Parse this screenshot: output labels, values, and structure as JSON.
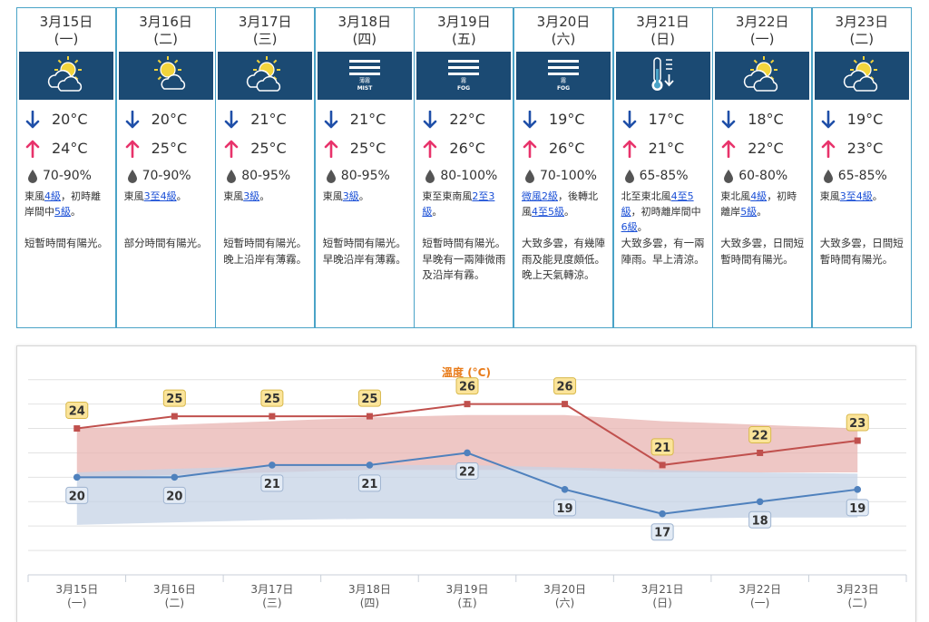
{
  "forecast": [
    {
      "date": "3月15日",
      "dow": "(一)",
      "icon": "sunny-periods-cloud-icon",
      "icon_label": "",
      "low": "20°C",
      "high": "24°C",
      "humidity": "70-90%",
      "wind": [
        {
          "t": "東風"
        },
        {
          "t": "4級",
          "link": true
        },
        {
          "t": "，初時離岸間中"
        },
        {
          "t": "5級",
          "link": true
        },
        {
          "t": "。"
        }
      ],
      "desc": "短暫時間有陽光。"
    },
    {
      "date": "3月16日",
      "dow": "(二)",
      "icon": "sun-cloud-icon",
      "icon_label": "",
      "low": "20°C",
      "high": "25°C",
      "humidity": "70-90%",
      "wind": [
        {
          "t": "東風"
        },
        {
          "t": "3至4級",
          "link": true
        },
        {
          "t": "。"
        }
      ],
      "desc": "部分時間有陽光。"
    },
    {
      "date": "3月17日",
      "dow": "(三)",
      "icon": "sunny-periods-cloud-icon",
      "icon_label": "",
      "low": "21°C",
      "high": "25°C",
      "humidity": "80-95%",
      "wind": [
        {
          "t": "東風"
        },
        {
          "t": "3級",
          "link": true
        },
        {
          "t": "。"
        }
      ],
      "desc": "短暫時間有陽光。晚上沿岸有薄霧。"
    },
    {
      "date": "3月18日",
      "dow": "(四)",
      "icon": "mist-icon",
      "icon_label": "MIST",
      "icon_cn": "薄霧",
      "low": "21°C",
      "high": "25°C",
      "humidity": "80-95%",
      "wind": [
        {
          "t": "東風"
        },
        {
          "t": "3級",
          "link": true
        },
        {
          "t": "。"
        }
      ],
      "desc": "短暫時間有陽光。早晚沿岸有薄霧。"
    },
    {
      "date": "3月19日",
      "dow": "(五)",
      "icon": "fog-icon",
      "icon_label": "FOG",
      "icon_cn": "霧",
      "low": "22°C",
      "high": "26°C",
      "humidity": "80-100%",
      "wind": [
        {
          "t": "東至東南風"
        },
        {
          "t": "2至3級",
          "link": true
        },
        {
          "t": "。"
        }
      ],
      "desc": "短暫時間有陽光。早晚有一兩陣微雨及沿岸有霧。"
    },
    {
      "date": "3月20日",
      "dow": "(六)",
      "icon": "fog-icon",
      "icon_label": "FOG",
      "icon_cn": "霧",
      "low": "19°C",
      "high": "26°C",
      "humidity": "70-100%",
      "wind": [
        {
          "t": "微風2級",
          "link": true
        },
        {
          "t": "，後轉北風"
        },
        {
          "t": "4至5級",
          "link": true
        },
        {
          "t": "。"
        }
      ],
      "desc": "大致多雲，有幾陣雨及能見度頗低。晚上天氣轉涼。"
    },
    {
      "date": "3月21日",
      "dow": "(日)",
      "icon": "cool-thermometer-icon",
      "icon_label": "",
      "low": "17°C",
      "high": "21°C",
      "humidity": "65-85%",
      "wind": [
        {
          "t": "北至東北風"
        },
        {
          "t": "4至5級",
          "link": true
        },
        {
          "t": "，初時離岸間中"
        },
        {
          "t": "6級",
          "link": true
        },
        {
          "t": "。"
        }
      ],
      "desc": "大致多雲，有一兩陣雨。早上清涼。"
    },
    {
      "date": "3月22日",
      "dow": "(一)",
      "icon": "sunny-periods-cloud-icon",
      "icon_label": "",
      "low": "18°C",
      "high": "22°C",
      "humidity": "60-80%",
      "wind": [
        {
          "t": "東北風"
        },
        {
          "t": "4級",
          "link": true
        },
        {
          "t": "，初時離岸"
        },
        {
          "t": "5級",
          "link": true
        },
        {
          "t": "。"
        }
      ],
      "desc": "大致多雲，日間短暫時間有陽光。"
    },
    {
      "date": "3月23日",
      "dow": "(二)",
      "icon": "sunny-periods-cloud-icon",
      "icon_label": "",
      "low": "19°C",
      "high": "23°C",
      "humidity": "65-85%",
      "wind": [
        {
          "t": "東風"
        },
        {
          "t": "3至4級",
          "link": true
        },
        {
          "t": "。"
        }
      ],
      "desc": "大致多雲，日間短暫時間有陽光。"
    }
  ],
  "colors": {
    "card_border": "#4aa3c7",
    "icon_bg": "#1b4a73",
    "low_arrow": "#1f4fa8",
    "high_arrow": "#e8336b",
    "link": "#1a4fd6",
    "high_line": "#c0504d",
    "low_line": "#4f81bd",
    "high_band": "#e8b4b2",
    "low_band": "#c5d3e6",
    "title": "#e87b19"
  },
  "chart_data": {
    "type": "line",
    "title": "溫度 (°C)",
    "categories": [
      "3月15日",
      "3月16日",
      "3月17日",
      "3月18日",
      "3月19日",
      "3月20日",
      "3月21日",
      "3月22日",
      "3月23日"
    ],
    "category_sub": [
      "(一)",
      "(二)",
      "(三)",
      "(四)",
      "(五)",
      "(六)",
      "(日)",
      "(一)",
      "(二)"
    ],
    "series": [
      {
        "values": [
          24,
          25,
          25,
          25,
          26,
          26,
          21,
          22,
          23
        ]
      },
      {
        "values": [
          20,
          20,
          21,
          21,
          22,
          19,
          17,
          18,
          19
        ]
      }
    ],
    "bands": [
      {
        "upper": [
          24,
          24.3,
          24.6,
          24.9,
          25.1,
          25.1,
          24.6,
          24.3,
          24.0
        ],
        "lower": [
          19.9,
          20.2,
          20.4,
          20.6,
          20.6,
          20.6,
          20.4,
          20.4,
          20.4
        ]
      },
      {
        "upper": [
          20.4,
          20.7,
          20.9,
          21.0,
          21.0,
          20.8,
          20.6,
          20.4,
          20.3
        ],
        "lower": [
          16.1,
          16.3,
          16.5,
          16.6,
          16.6,
          16.6,
          16.6,
          16.7,
          16.7
        ]
      }
    ],
    "ylim": [
      12,
      28.5
    ],
    "grid": true
  }
}
